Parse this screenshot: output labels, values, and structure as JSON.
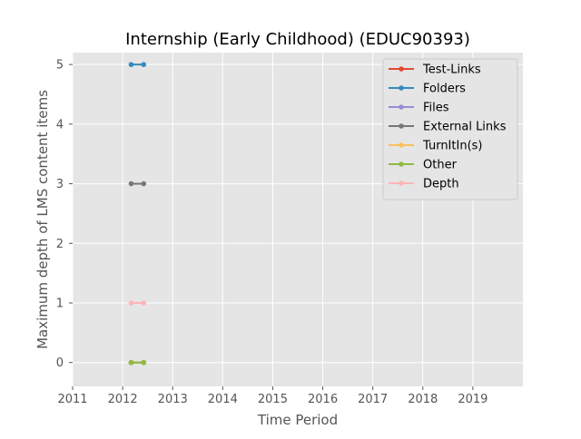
{
  "chart_data": {
    "type": "line",
    "title": "Internship (Early Childhood) (EDUC90393)",
    "xlabel": "Time Period",
    "ylabel": "Maximum depth of LMS content items",
    "xlim": [
      2011,
      2020
    ],
    "ylim": [
      -0.4,
      5.2
    ],
    "xticks": [
      2011,
      2012,
      2013,
      2014,
      2015,
      2016,
      2017,
      2018,
      2019
    ],
    "yticks": [
      0,
      1,
      2,
      3,
      4,
      5
    ],
    "grid": true,
    "legend_position": "top-right",
    "x": [
      2012.17,
      2012.42
    ],
    "series": [
      {
        "name": "Test-Links",
        "color": "#e24a33",
        "values": [
          0,
          0
        ]
      },
      {
        "name": "Folders",
        "color": "#348abd",
        "values": [
          5,
          5
        ]
      },
      {
        "name": "Files",
        "color": "#988ed5",
        "values": [
          0,
          0
        ]
      },
      {
        "name": "External Links",
        "color": "#777777",
        "values": [
          3,
          3
        ]
      },
      {
        "name": "TurnItIn(s)",
        "color": "#fbc15e",
        "values": [
          0,
          0
        ]
      },
      {
        "name": "Other",
        "color": "#8eba42",
        "values": [
          0,
          0
        ]
      },
      {
        "name": "Depth",
        "color": "#ffb5b8",
        "values": [
          1,
          1
        ]
      }
    ]
  }
}
